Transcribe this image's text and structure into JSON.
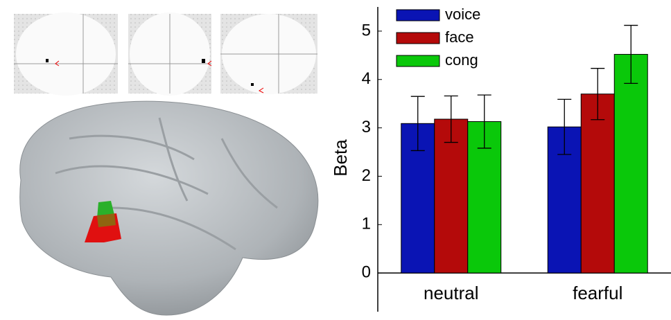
{
  "chart_data": {
    "type": "bar",
    "categories": [
      "neutral",
      "fearful"
    ],
    "y_label": "Beta",
    "series": [
      {
        "name": "voice",
        "color": "#0a14b4",
        "values": [
          3.09,
          3.02
        ],
        "errors": [
          0.56,
          0.57
        ]
      },
      {
        "name": "face",
        "color": "#b40a0a",
        "values": [
          3.18,
          3.7
        ],
        "errors": [
          0.48,
          0.53
        ]
      },
      {
        "name": "cong",
        "color": "#0ac80a",
        "values": [
          3.13,
          4.52
        ],
        "errors": [
          0.55,
          0.6
        ]
      }
    ],
    "ylim": [
      -0.8,
      5.5
    ],
    "yticks": [
      0,
      1,
      2,
      3,
      4,
      5
    ],
    "legend": "upper left"
  }
}
